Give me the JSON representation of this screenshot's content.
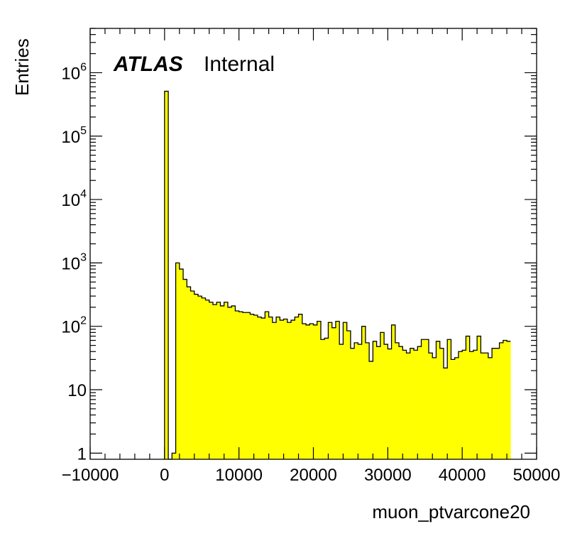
{
  "chart_data": {
    "type": "histogram",
    "title": "",
    "xlabel": "muon_ptvarcone20",
    "ylabel": "Entries",
    "xlim": [
      -10000,
      50000
    ],
    "ylim": [
      0.8,
      5000000
    ],
    "log_y": true,
    "grid": false,
    "fill_color": "#ffff00",
    "line_color": "#000000",
    "label": {
      "experiment": "ATLAS",
      "status": "Internal"
    },
    "x_ticks": [
      {
        "value": -10000,
        "label": "−10000"
      },
      {
        "value": 0,
        "label": "0"
      },
      {
        "value": 10000,
        "label": "10000"
      },
      {
        "value": 20000,
        "label": "20000"
      },
      {
        "value": 30000,
        "label": "30000"
      },
      {
        "value": 40000,
        "label": "40000"
      },
      {
        "value": 50000,
        "label": "50000"
      }
    ],
    "y_ticks": [
      {
        "value": 1,
        "base": "1",
        "exp": ""
      },
      {
        "value": 10,
        "base": "10",
        "exp": ""
      },
      {
        "value": 100,
        "base": "10",
        "exp": "2"
      },
      {
        "value": 1000,
        "base": "10",
        "exp": "3"
      },
      {
        "value": 10000,
        "base": "10",
        "exp": "4"
      },
      {
        "value": 100000,
        "base": "10",
        "exp": "5"
      },
      {
        "value": 1000000,
        "base": "10",
        "exp": "6"
      }
    ],
    "bin_width": 500,
    "bins_start": 0,
    "values": [
      510000,
      0,
      1,
      1000,
      800,
      550,
      420,
      360,
      320,
      300,
      280,
      260,
      240,
      220,
      240,
      210,
      240,
      200,
      210,
      175,
      170,
      165,
      165,
      155,
      150,
      140,
      135,
      170,
      140,
      115,
      140,
      125,
      130,
      115,
      125,
      140,
      155,
      110,
      105,
      110,
      105,
      120,
      62,
      65,
      115,
      95,
      120,
      52,
      115,
      85,
      45,
      55,
      52,
      100,
      55,
      28,
      58,
      48,
      80,
      52,
      44,
      105,
      55,
      48,
      42,
      38,
      45,
      42,
      48,
      62,
      62,
      38,
      32,
      58,
      45,
      22,
      62,
      30,
      32,
      40,
      42,
      70,
      40,
      42,
      70,
      38,
      38,
      32,
      45,
      45,
      55,
      60,
      58
    ]
  }
}
